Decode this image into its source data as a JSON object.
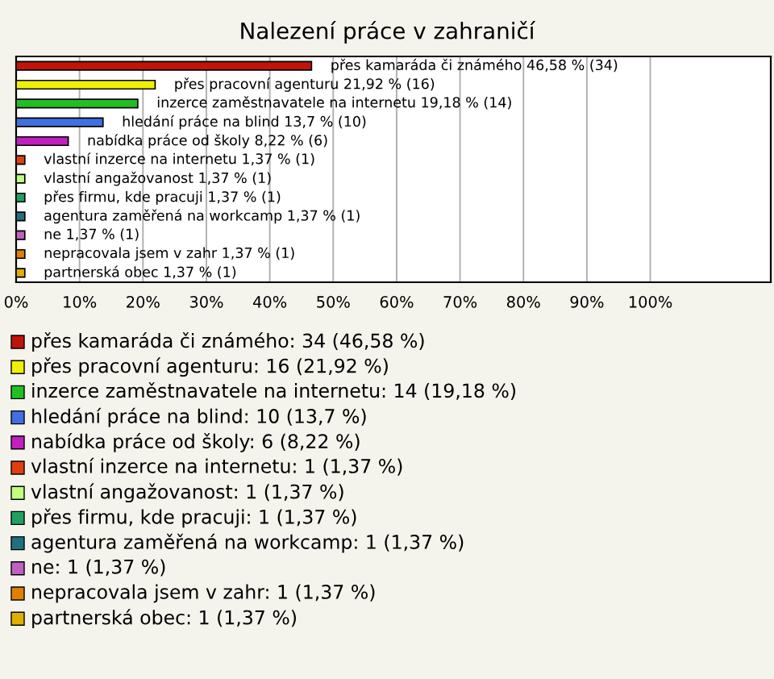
{
  "chart_data": {
    "type": "bar",
    "orientation": "horizontal",
    "title": "Nalezení práce v zahraničí",
    "categories": [
      "přes kamaráda či známého",
      "přes pracovní agenturu",
      "inzerce zaměstnavatele na internetu",
      "hledání práce na blind",
      "nabídka práce od školy",
      "vlastní inzerce na internetu",
      "vlastní angažovanost",
      "přes firmu, kde pracuji",
      "agentura zaměřená na workcamp",
      "ne",
      "nepracovala jsem v zahr",
      "partnerská obec"
    ],
    "values": [
      46.58,
      21.92,
      19.18,
      13.7,
      8.22,
      1.37,
      1.37,
      1.37,
      1.37,
      1.37,
      1.37,
      1.37
    ],
    "value_labels": [
      "46,58 % (34)",
      "21,92 % (16)",
      "19,18 % (14)",
      "13,7 % (10)",
      "8,22 % (6)",
      "1,37 % (1)",
      "1,37 % (1)",
      "1,37 % (1)",
      "1,37 % (1)",
      "1,37 % (1)",
      "1,37 % (1)",
      "1,37 % (1)"
    ],
    "colors": [
      "#c0140a",
      "#f0f000",
      "#20c020",
      "#4070e0",
      "#c020c0",
      "#e04010",
      "#c0ff80",
      "#20a060",
      "#207080",
      "#c060c0",
      "#e08000",
      "#e0b000"
    ],
    "xlim": [
      0,
      119
    ],
    "xticks": [
      {
        "value": 0,
        "label": "0%"
      },
      {
        "value": 10,
        "label": "10%"
      },
      {
        "value": 20,
        "label": "20%"
      },
      {
        "value": 30,
        "label": "30%"
      },
      {
        "value": 40,
        "label": "40%"
      },
      {
        "value": 50,
        "label": "50%"
      },
      {
        "value": 60,
        "label": "60%"
      },
      {
        "value": 70,
        "label": "70%"
      },
      {
        "value": 80,
        "label": "80%"
      },
      {
        "value": 90,
        "label": "90%"
      },
      {
        "value": 100,
        "label": "100%"
      }
    ],
    "grid": "x",
    "annotations": [
      "přes kamaráda či známého: 34 (46,58 %)",
      "přes pracovní agenturu: 16 (21,92 %)",
      "inzerce zaměstnavatele na internetu: 14 (19,18 %)",
      "hledání práce na blind: 10 (13,7 %)",
      "nabídka práce od školy: 6 (8,22 %)",
      "vlastní inzerce na internetu: 1 (1,37 %)",
      "vlastní angažovanost: 1 (1,37 %)",
      "přes firmu, kde pracuji: 1 (1,37 %)",
      "agentura zaměřená na workcamp: 1 (1,37 %)",
      "ne: 1 (1,37 %)",
      "nepracovala jsem v zahr: 1 (1,37 %)",
      "partnerská obec: 1 (1,37 %)"
    ]
  }
}
